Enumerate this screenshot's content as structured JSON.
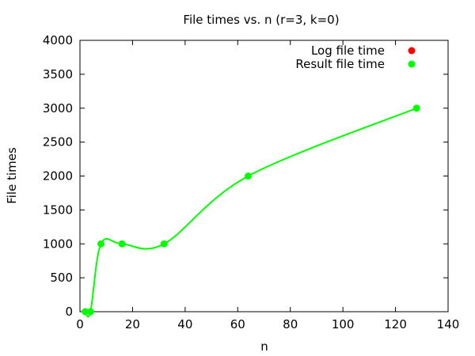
{
  "chart_data": {
    "type": "line",
    "title": "File times vs. n (r=3, k=0)",
    "xlabel": "n",
    "ylabel": "File times",
    "xlim": [
      0,
      140
    ],
    "ylim": [
      0,
      4000
    ],
    "xticks": [
      0,
      20,
      40,
      60,
      80,
      100,
      120,
      140
    ],
    "yticks": [
      0,
      500,
      1000,
      1500,
      2000,
      2500,
      3000,
      3500,
      4000
    ],
    "grid": false,
    "legend_position": "top-right",
    "series": [
      {
        "name": "Log file time",
        "color": "#ff0000",
        "x": [],
        "y": []
      },
      {
        "name": "Result file time",
        "color": "#00ff00",
        "x": [
          2,
          4,
          8,
          16,
          32,
          64,
          128
        ],
        "y": [
          0,
          0,
          1000,
          1000,
          1000,
          2000,
          3000
        ]
      }
    ]
  }
}
